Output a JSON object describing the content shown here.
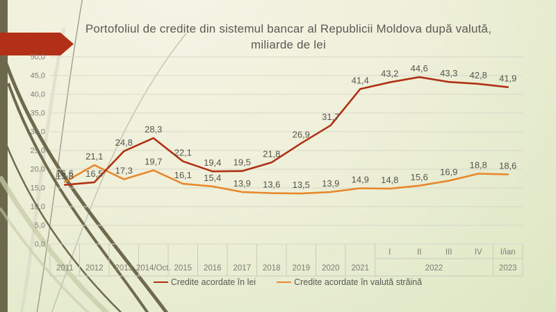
{
  "chart_data": {
    "type": "line",
    "title": "Portofoliul de credite din sistemul bancar al Republicii Moldova după valută, miliarde de lei",
    "categories": [
      "2011",
      "2012",
      "2013",
      "2014/Oct.",
      "2015",
      "2016",
      "2017",
      "2018",
      "2019",
      "2020",
      "2021",
      "2022 I",
      "2022 II",
      "2022 III",
      "2022 IV",
      "2023 I/ian"
    ],
    "x_axis": {
      "quarter_row": [
        "",
        "",
        "",
        "",
        "",
        "",
        "",
        "",
        "",
        "",
        "",
        "I",
        "II",
        "III",
        "IV",
        "I/ian"
      ],
      "year_row": [
        {
          "label": "2011",
          "from": 0,
          "to": 0
        },
        {
          "label": "2012",
          "from": 1,
          "to": 1
        },
        {
          "label": "2013",
          "from": 2,
          "to": 2
        },
        {
          "label": "2014/Oct.",
          "from": 3,
          "to": 3
        },
        {
          "label": "2015",
          "from": 4,
          "to": 4
        },
        {
          "label": "2016",
          "from": 5,
          "to": 5
        },
        {
          "label": "2017",
          "from": 6,
          "to": 6
        },
        {
          "label": "2018",
          "from": 7,
          "to": 7
        },
        {
          "label": "2019",
          "from": 8,
          "to": 8
        },
        {
          "label": "2020",
          "from": 9,
          "to": 9
        },
        {
          "label": "2021",
          "from": 10,
          "to": 10
        },
        {
          "label": "2022",
          "from": 11,
          "to": 14
        },
        {
          "label": "2023",
          "from": 15,
          "to": 15
        }
      ]
    },
    "series": [
      {
        "name": "Credite acordate în lei",
        "color": "#b03014",
        "values": [
          15.8,
          16.5,
          24.8,
          28.3,
          22.1,
          19.4,
          19.5,
          21.8,
          26.9,
          31.7,
          41.4,
          43.2,
          44.6,
          43.3,
          42.8,
          41.9
        ]
      },
      {
        "name": "Credite acordate în valută străină",
        "color": "#e8872b",
        "values": [
          16.6,
          21.1,
          17.3,
          19.7,
          16.1,
          15.4,
          13.9,
          13.6,
          13.5,
          13.9,
          14.9,
          14.8,
          15.6,
          16.9,
          18.8,
          18.6
        ]
      }
    ],
    "ylim": [
      0,
      50
    ],
    "y_tick_step": 5,
    "y_tick_labels": [
      "0,0",
      "5,0",
      "10,0",
      "15,0",
      "20,0",
      "25,0",
      "30,0",
      "35,0",
      "40,0",
      "45,0",
      "50,0"
    ],
    "decimal_separator": ",",
    "grid": true,
    "legend_position": "bottom",
    "data_labels": true
  },
  "theme": {
    "bg_start": "#f5f4e6",
    "bg_mid": "#eff0da",
    "bg_end": "#dde7c3",
    "accent_red": "#b23017",
    "olive_bar": "#6c684b",
    "swirl_dark": "#6f6a4d",
    "swirl_mid": "#8f8d7e",
    "swirl_light": "#c8cba8",
    "arc_light": "#bbbeab",
    "arc_pale": "#d4d6c4",
    "grid_line": "#d6d7c8",
    "axis_line": "#c9cabb",
    "text_title": "#595955",
    "text_axis": "#7c7c74",
    "text_label": "#55554e"
  }
}
